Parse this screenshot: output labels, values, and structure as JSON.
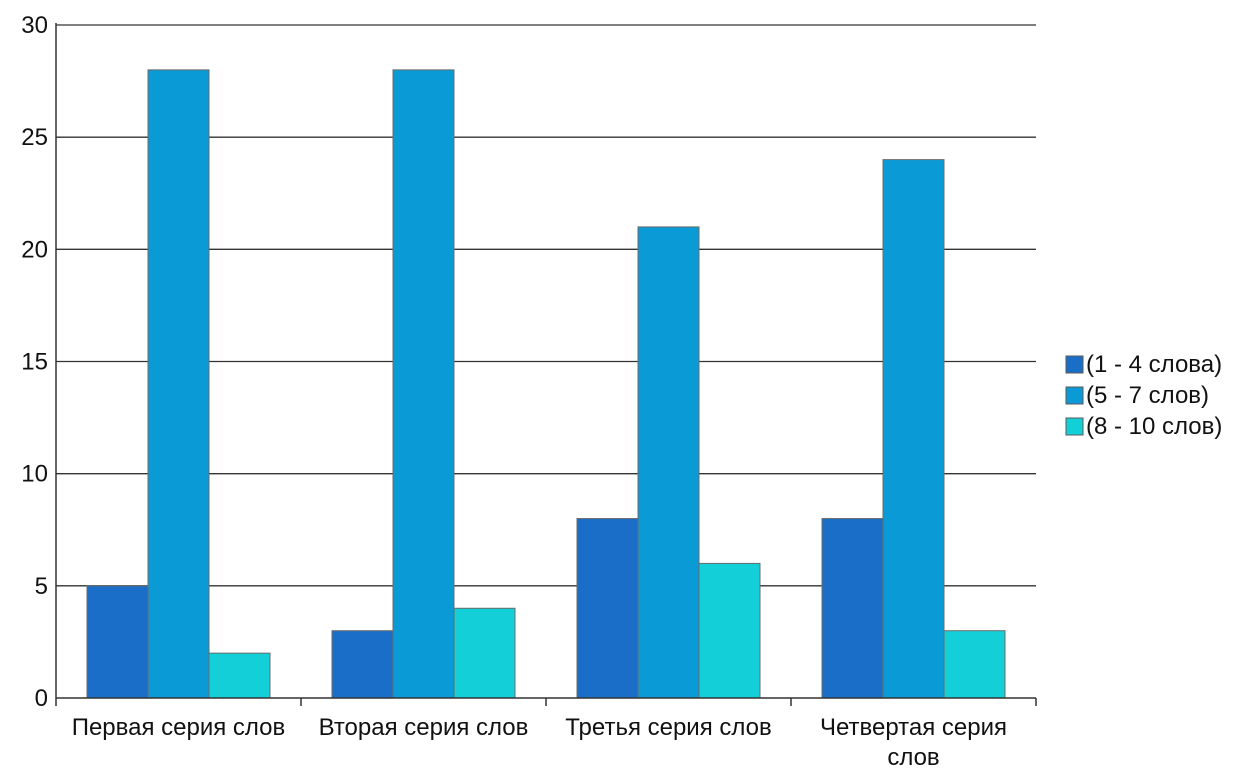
{
  "chart_data": {
    "type": "bar",
    "categories": [
      "Первая серия слов",
      "Вторая серия слов",
      "Третья серия слов",
      "Четвертая серия слов"
    ],
    "category_lines": [
      [
        "Первая серия слов"
      ],
      [
        "Вторая серия слов"
      ],
      [
        "Третья серия слов"
      ],
      [
        "Четвертая серия",
        "слов"
      ]
    ],
    "series": [
      {
        "name": "(1 - 4 слова)",
        "values": [
          5,
          3,
          8,
          8
        ],
        "color": "#1a6ec8"
      },
      {
        "name": "(5 - 7 слов)",
        "values": [
          28,
          28,
          21,
          24
        ],
        "color": "#0a9ad6"
      },
      {
        "name": "(8 - 10 слов)",
        "values": [
          2,
          4,
          6,
          3
        ],
        "color": "#13d0d8"
      }
    ],
    "title": "",
    "xlabel": "",
    "ylabel": "",
    "ylim": [
      0,
      30
    ],
    "yticks": [
      0,
      5,
      10,
      15,
      20,
      25,
      30
    ],
    "grid": true,
    "legend_position": "right"
  }
}
